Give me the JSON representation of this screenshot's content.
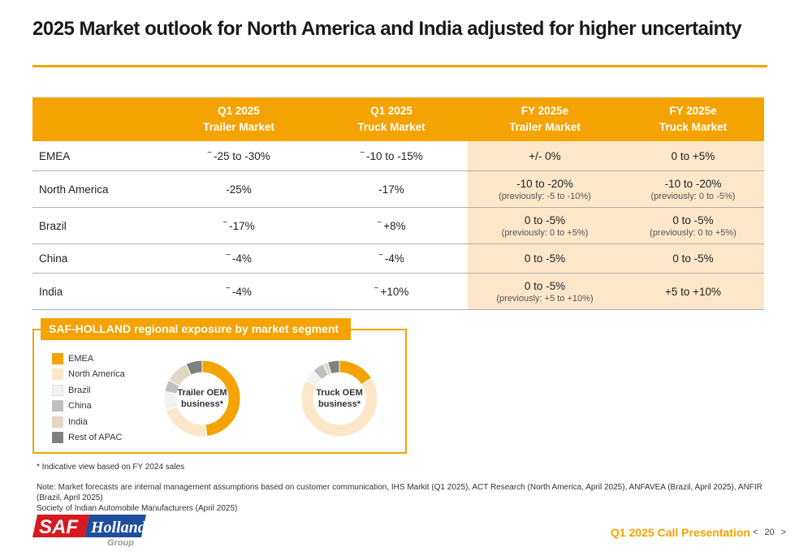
{
  "title": "2025 Market outlook for North America and India adjusted for higher uncertainty",
  "colors": {
    "accent": "#f4a300",
    "highlight": "#fde7c9"
  },
  "table": {
    "headers": [
      {
        "line1": "",
        "line2": ""
      },
      {
        "line1": "Q1 2025",
        "line2": "Trailer Market"
      },
      {
        "line1": "Q1 2025",
        "line2": "Truck Market"
      },
      {
        "line1": "FY 2025e",
        "line2": "Trailer Market"
      },
      {
        "line1": "FY 2025e",
        "line2": "Truck Market"
      }
    ],
    "rows": [
      {
        "region": "EMEA",
        "q1_trailer": "-25 to -30%",
        "q1_trailer_tilde": "~",
        "q1_truck": "-10 to -15%",
        "q1_truck_tilde": "~",
        "fy_trailer": "+/- 0%",
        "fy_trailer_prev": "",
        "fy_truck": "0 to +5%",
        "fy_truck_prev": ""
      },
      {
        "region": "North America",
        "q1_trailer": "-25%",
        "q1_trailer_tilde": "",
        "q1_truck": "-17%",
        "q1_truck_tilde": "",
        "fy_trailer": "-10 to -20%",
        "fy_trailer_prev": "(previously: -5 to -10%)",
        "fy_truck": "-10 to -20%",
        "fy_truck_prev": "(previously: 0 to -5%)"
      },
      {
        "region": "Brazil",
        "q1_trailer": "-17%",
        "q1_trailer_tilde": "~",
        "q1_truck": "+8%",
        "q1_truck_tilde": "~",
        "fy_trailer": "0 to -5%",
        "fy_trailer_prev": "(previously: 0 to +5%)",
        "fy_truck": "0 to -5%",
        "fy_truck_prev": "(previously: 0 to +5%)"
      },
      {
        "region": "China",
        "q1_trailer": "-4%",
        "q1_trailer_tilde": "~",
        "q1_truck": "-4%",
        "q1_truck_tilde": "~",
        "fy_trailer": "0 to -5%",
        "fy_trailer_prev": "",
        "fy_truck": "0 to -5%",
        "fy_truck_prev": ""
      },
      {
        "region": "India",
        "q1_trailer": "-4%",
        "q1_trailer_tilde": "~",
        "q1_truck": "+10%",
        "q1_truck_tilde": "~",
        "fy_trailer": "0 to -5%",
        "fy_trailer_prev": "(previously: +5 to +10%)",
        "fy_truck": "+5 to +10%",
        "fy_truck_prev": ""
      }
    ]
  },
  "exposure": {
    "heading": "SAF-HOLLAND regional exposure by market segment",
    "legend": [
      {
        "label": "EMEA",
        "color": "#f4a300"
      },
      {
        "label": "North America",
        "color": "#fde7c9"
      },
      {
        "label": "Brazil",
        "color": "#f2f2f2"
      },
      {
        "label": "China",
        "color": "#bfbfbf"
      },
      {
        "label": "India",
        "color": "#e3d6c4"
      },
      {
        "label": "Rest of APAC",
        "color": "#808080"
      }
    ],
    "donuts": [
      {
        "label_line1": "Trailer OEM",
        "label_line2": "business*",
        "shares": [
          0.48,
          0.22,
          0.08,
          0.05,
          0.1,
          0.07
        ]
      },
      {
        "label_line1": "Truck OEM",
        "label_line2": "business*",
        "shares": [
          0.16,
          0.67,
          0.05,
          0.05,
          0.02,
          0.05
        ]
      }
    ]
  },
  "footnote": "* Indicative view based on FY 2024 sales",
  "note_line1": "Note: Market forecasts are internal management assumptions based on customer communication, IHS Markit (Q1 2025), ACT Research (North America, April 2025), ANFAVEA (Brazil, April 2025), ANFIR (Brazil, April 2025)",
  "note_line2": "Society of Indian Automobile Manufacturers (April 2025)",
  "logo": {
    "text_saf": "SAF",
    "text_holland": "Holland",
    "text_group": "Group"
  },
  "footer": {
    "presentation": "Q1 2025 Call Presentation",
    "page_number": "20",
    "prev": "<",
    "next": ">"
  }
}
